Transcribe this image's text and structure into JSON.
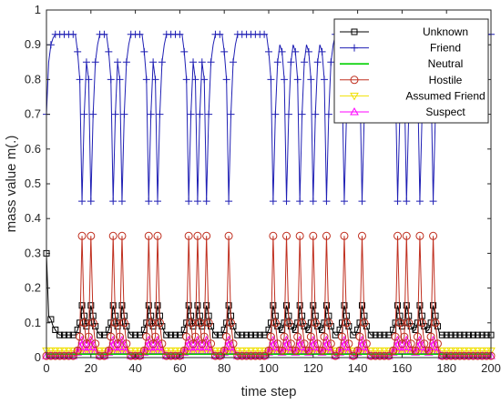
{
  "chart_data": {
    "type": "line",
    "xlabel": "time step",
    "ylabel": "mass value m(.)",
    "xlim": [
      0,
      200
    ],
    "ylim": [
      0,
      1
    ],
    "xticks": [
      "0",
      "20",
      "40",
      "60",
      "80",
      "100",
      "120",
      "140",
      "160",
      "180",
      "200"
    ],
    "yticks": [
      "0",
      "0.1",
      "0.2",
      "0.3",
      "0.4",
      "0.5",
      "0.6",
      "0.7",
      "0.8",
      "0.9",
      "1"
    ],
    "grid": false,
    "legend_position": "top-right",
    "events": [
      16,
      20,
      30,
      34,
      46,
      50,
      64,
      68,
      72,
      82,
      102,
      108,
      114,
      120,
      126,
      134,
      142,
      158,
      162,
      168,
      174
    ],
    "event_note": "Friend mass drops (~0.44-0.46) at event time steps; Hostile spikes to ~0.35 at the same steps",
    "series": [
      {
        "name": "Unknown",
        "color": "#000000",
        "marker": "square",
        "initial": [
          0.3,
          0.12,
          0.11,
          0.09,
          0.08,
          0.07
        ],
        "baseline": 0.065,
        "peak": 0.15
      },
      {
        "name": "Friend",
        "color": "#1f1fb4",
        "marker": "plus",
        "initial": [
          0.7,
          0.85,
          0.9,
          0.92,
          0.93
        ],
        "baseline": 0.93,
        "dip": 0.45
      },
      {
        "name": "Neutral",
        "color": "#00d000",
        "marker": "none",
        "baseline": 0.01
      },
      {
        "name": "Hostile",
        "color": "#c03020",
        "marker": "circle",
        "baseline": 0.005,
        "peak": 0.35
      },
      {
        "name": "Assumed Friend",
        "color": "#f0e000",
        "marker": "triangle-down",
        "baseline": 0.02
      },
      {
        "name": "Suspect",
        "color": "#ff00ff",
        "marker": "triangle-up",
        "baseline": 0.005,
        "peak": 0.05
      }
    ]
  }
}
